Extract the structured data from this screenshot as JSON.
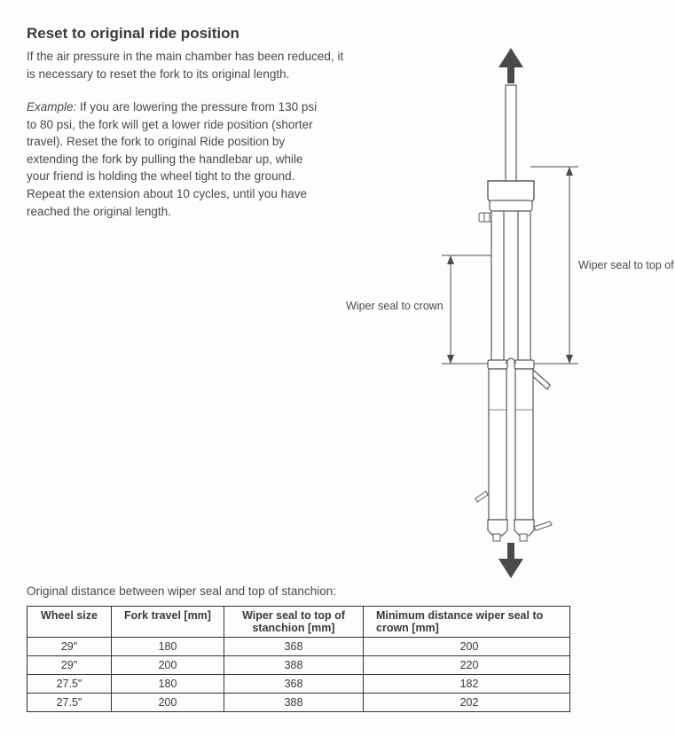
{
  "title": "Reset to original ride position",
  "intro": "If the air pressure in the main chamber has been reduced, it is necessary to reset the fork to its original length.",
  "example_label": "Example:",
  "example_body": " If you are lowering the pressure from 130 psi to 80 psi, the fork will get a lower ride position (shorter travel). Reset the fork to original Ride position by extending the fork by pulling the handlebar up, while your friend is holding the wheel tight to the ground. Repeat the extension about 10 cycles, until you have reached the original length.",
  "label_left": "Wiper seal to crown",
  "label_right": "Wiper seal to top of stanchion",
  "table_caption": "Original distance between wiper seal and top of stanchion:",
  "table": {
    "columns": [
      "Wheel size",
      "Fork travel [mm]",
      "Wiper seal to top of stanchion [mm]",
      "Minimum distance wiper seal to crown [mm]"
    ],
    "rows": [
      [
        "29\"",
        "180",
        "368",
        "200"
      ],
      [
        "29\"",
        "200",
        "388",
        "220"
      ],
      [
        "27.5\"",
        "180",
        "368",
        "182"
      ],
      [
        "27.5\"",
        "200",
        "388",
        "202"
      ]
    ]
  },
  "diagram": {
    "stroke": "#5a5a5a",
    "fill": "#ffffff",
    "arrow_fill": "#4a4a4a"
  }
}
